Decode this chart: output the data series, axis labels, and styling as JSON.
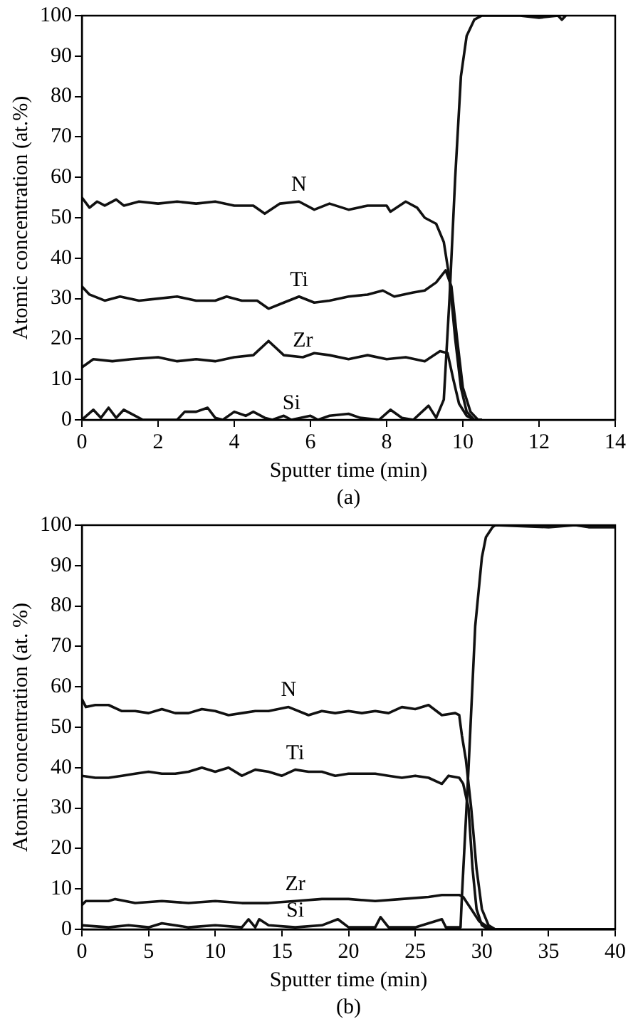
{
  "chart_data": [
    {
      "type": "line",
      "xlabel": "Sputter time (min)",
      "ylabel": "Atomic concentration (at.%)",
      "annotations": [
        "(a)"
      ],
      "xlim": [
        0,
        14
      ],
      "xticks": [
        0,
        2,
        4,
        6,
        8,
        10,
        12,
        14
      ],
      "ylim": [
        0,
        100
      ],
      "yticks": [
        0,
        10,
        20,
        30,
        40,
        50,
        60,
        70,
        80,
        90,
        100
      ],
      "grid": false,
      "legend": false,
      "marker": "none",
      "line_style": "solid",
      "series": [
        {
          "name": "N",
          "color": "#111111",
          "x": [
            0,
            0.2,
            0.4,
            0.6,
            0.9,
            1.1,
            1.5,
            2,
            2.5,
            3,
            3.5,
            4,
            4.5,
            4.8,
            5.2,
            5.7,
            6.1,
            6.5,
            7,
            7.5,
            8,
            8.1,
            8.5,
            8.8,
            9,
            9.3,
            9.5,
            9.65,
            9.8,
            9.95,
            10.1,
            10.3,
            10.5
          ],
          "values": [
            55,
            52.5,
            54,
            53,
            54.5,
            53,
            54,
            53.5,
            54,
            53.5,
            54,
            53,
            53,
            51,
            53.5,
            54,
            52,
            53.5,
            52,
            53,
            53,
            51.5,
            54,
            52.5,
            50,
            48.5,
            44,
            35,
            20,
            8,
            2,
            0,
            0
          ]
        },
        {
          "name": "Ti",
          "color": "#111111",
          "x": [
            0,
            0.2,
            0.6,
            1,
            1.5,
            2,
            2.5,
            3,
            3.5,
            3.8,
            4.2,
            4.6,
            4.9,
            5.3,
            5.7,
            6.1,
            6.5,
            7,
            7.5,
            7.9,
            8.2,
            8.7,
            9,
            9.3,
            9.55,
            9.7,
            9.85,
            10,
            10.2,
            10.4,
            10.5
          ],
          "values": [
            33,
            31,
            29.5,
            30.5,
            29.5,
            30,
            30.5,
            29.5,
            29.5,
            30.5,
            29.5,
            29.5,
            27.5,
            29,
            30.5,
            29,
            29.5,
            30.5,
            31,
            32,
            30.5,
            31.5,
            32,
            34,
            37,
            33,
            20,
            8,
            2,
            0,
            0
          ]
        },
        {
          "name": "Zr",
          "color": "#111111",
          "x": [
            0,
            0.3,
            0.8,
            1.3,
            2,
            2.5,
            3,
            3.5,
            4,
            4.5,
            4.9,
            5.3,
            5.8,
            6.1,
            6.5,
            7,
            7.5,
            8,
            8.5,
            9,
            9.4,
            9.6,
            9.75,
            9.9,
            10.1,
            10.3,
            10.5
          ],
          "values": [
            13,
            15,
            14.5,
            15,
            15.5,
            14.5,
            15,
            14.5,
            15.5,
            16,
            19.5,
            16,
            15.5,
            16.5,
            16,
            15,
            16,
            15,
            15.5,
            14.5,
            17,
            16.5,
            10,
            4,
            1,
            0,
            0
          ]
        },
        {
          "name": "Si",
          "color": "#111111",
          "x": [
            0,
            0.3,
            0.5,
            0.7,
            0.9,
            1.1,
            1.4,
            1.6,
            2.5,
            2.7,
            3,
            3.3,
            3.5,
            3.7,
            4,
            4.3,
            4.5,
            4.8,
            5,
            5.3,
            5.5,
            6,
            6.2,
            6.5,
            7,
            7.3,
            7.8,
            8.1,
            8.4,
            8.7,
            9.1,
            9.3,
            9.5,
            9.65,
            9.8,
            9.95,
            10.1,
            10.3,
            10.5,
            11.5,
            12,
            12.5,
            12.6,
            12.7
          ],
          "values": [
            0,
            2.5,
            0.5,
            3,
            0.5,
            2.5,
            1,
            0,
            0,
            2,
            2,
            3,
            0.5,
            0,
            2,
            1,
            2,
            0.5,
            0,
            1,
            0,
            1,
            0,
            1,
            1.5,
            0.5,
            0,
            2.5,
            0.5,
            0,
            3.5,
            0.5,
            5,
            30,
            60,
            85,
            95,
            99,
            100,
            100,
            99.5,
            100,
            99,
            100
          ]
        }
      ]
    },
    {
      "type": "line",
      "xlabel": "Sputter time (min)",
      "ylabel": "Atomic concentration (at. %)",
      "annotations": [
        "(b)"
      ],
      "xlim": [
        0,
        40
      ],
      "xticks": [
        0,
        5,
        10,
        15,
        20,
        25,
        30,
        35,
        40
      ],
      "ylim": [
        0,
        100
      ],
      "yticks": [
        0,
        10,
        20,
        30,
        40,
        50,
        60,
        70,
        80,
        90,
        100
      ],
      "grid": false,
      "legend": false,
      "marker": "none",
      "line_style": "solid",
      "series": [
        {
          "name": "N",
          "color": "#111111",
          "x": [
            0,
            0.3,
            1,
            2,
            3,
            4,
            5,
            6,
            7,
            8,
            9,
            10,
            11,
            12,
            13,
            14,
            15.5,
            17,
            18,
            19,
            20,
            21,
            22,
            23,
            24,
            25,
            26,
            27,
            28,
            28.3,
            28.5,
            28.8,
            29.2,
            29.6,
            30,
            30.5,
            31,
            40
          ],
          "values": [
            57,
            55,
            55.5,
            55.5,
            54,
            54,
            53.5,
            54.5,
            53.5,
            53.5,
            54.5,
            54,
            53,
            53.5,
            54,
            54,
            55,
            53,
            54,
            53.5,
            54,
            53.5,
            54,
            53.5,
            55,
            54.5,
            55.5,
            53,
            53.5,
            53,
            48,
            42,
            30,
            15,
            5,
            1,
            0,
            0
          ]
        },
        {
          "name": "Ti",
          "color": "#111111",
          "x": [
            0,
            1,
            2,
            3,
            4,
            5,
            6,
            7,
            8,
            9,
            10,
            11,
            12,
            13,
            14,
            15,
            16,
            17,
            18,
            19,
            20,
            21,
            22,
            23,
            24,
            25,
            26,
            27,
            27.5,
            28.3,
            28.6,
            29,
            29.3,
            29.6,
            30,
            30.5,
            40
          ],
          "values": [
            38,
            37.5,
            37.5,
            38,
            38.5,
            39,
            38.5,
            38.5,
            39,
            40,
            39,
            40,
            38,
            39.5,
            39,
            38,
            39.5,
            39,
            39,
            38,
            38.5,
            38.5,
            38.5,
            38,
            37.5,
            38,
            37.5,
            36,
            38,
            37.5,
            36,
            30,
            15,
            5,
            1,
            0,
            0
          ]
        },
        {
          "name": "Zr",
          "color": "#111111",
          "x": [
            0,
            0.3,
            2,
            2.5,
            4,
            6,
            8,
            10,
            12,
            14,
            16,
            18,
            20,
            22,
            24,
            26,
            27,
            28.3,
            28.6,
            29.2,
            29.8,
            30.5,
            31,
            40
          ],
          "values": [
            6,
            7,
            7,
            7.5,
            6.5,
            7,
            6.5,
            7,
            6.5,
            6.5,
            7,
            7.5,
            7.5,
            7,
            7.5,
            8,
            8.5,
            8.5,
            8,
            5,
            2,
            0.5,
            0,
            0
          ]
        },
        {
          "name": "Si",
          "color": "#111111",
          "x": [
            0,
            2,
            3.5,
            5,
            6,
            8,
            10,
            12,
            12.5,
            13,
            13.3,
            14,
            16,
            18,
            19.2,
            20,
            22,
            22.4,
            23,
            25,
            27,
            27.3,
            28,
            28.4,
            28.5,
            29,
            29.5,
            30,
            30.3,
            30.8,
            31,
            35,
            37,
            38,
            40
          ],
          "values": [
            1,
            0.5,
            1,
            0.5,
            1.5,
            0.5,
            1,
            0.5,
            2.5,
            0.5,
            2.5,
            1,
            0.5,
            1,
            2.5,
            0.5,
            0.5,
            3,
            0.5,
            0.5,
            2.5,
            0.5,
            0.5,
            0.5,
            8,
            40,
            75,
            92,
            97,
            99.5,
            100,
            99.5,
            100,
            99.5,
            99.5
          ]
        }
      ]
    }
  ]
}
